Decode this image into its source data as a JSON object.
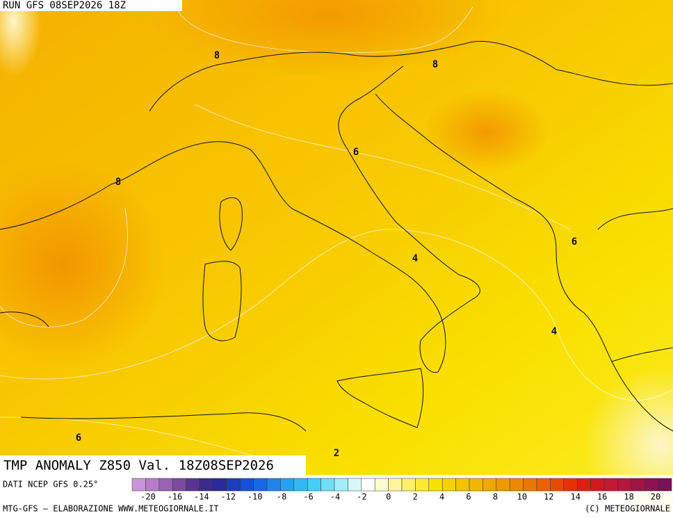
{
  "header": {
    "run": "RUN GFS 08SEP2026 18Z"
  },
  "map": {
    "title": "TMP ANOMALY Z850 Val. 18Z08SEP2026",
    "contour_labels": [
      8,
      8,
      8,
      6,
      6,
      4,
      4,
      6,
      2
    ]
  },
  "colorbar": {
    "source": "DATI NCEP GFS 0.25°",
    "ticks": [
      -20,
      -16,
      -14,
      -12,
      -10,
      -8,
      -6,
      -4,
      -2,
      0,
      2,
      4,
      6,
      8,
      10,
      12,
      14,
      16,
      18,
      20
    ],
    "colors": [
      "#c896d8",
      "#b47ec8",
      "#9a62b4",
      "#7c4aa0",
      "#5a3490",
      "#3c2a8c",
      "#2a2aa0",
      "#1e3cbe",
      "#1450d8",
      "#1468e6",
      "#1e84ee",
      "#28a0f2",
      "#32b8f4",
      "#46cef4",
      "#6ee0f4",
      "#a0eef6",
      "#d8f8f8",
      "#ffffff",
      "#fffbd0",
      "#fff59c",
      "#fff068",
      "#fcea32",
      "#f8e000",
      "#f6d200",
      "#f4c400",
      "#f2b600",
      "#f0a800",
      "#ee9a00",
      "#ec8a00",
      "#ea7800",
      "#e86200",
      "#e64a00",
      "#e43200",
      "#dc2010",
      "#d01a20",
      "#c41830",
      "#b4163c",
      "#a01446",
      "#8c1250",
      "#7a1058"
    ]
  },
  "footer": {
    "left": "MTG-GFS — ELABORAZIONE WWW.METEOGIORNALE.IT",
    "right": "(C) METEOGIORNALE"
  }
}
